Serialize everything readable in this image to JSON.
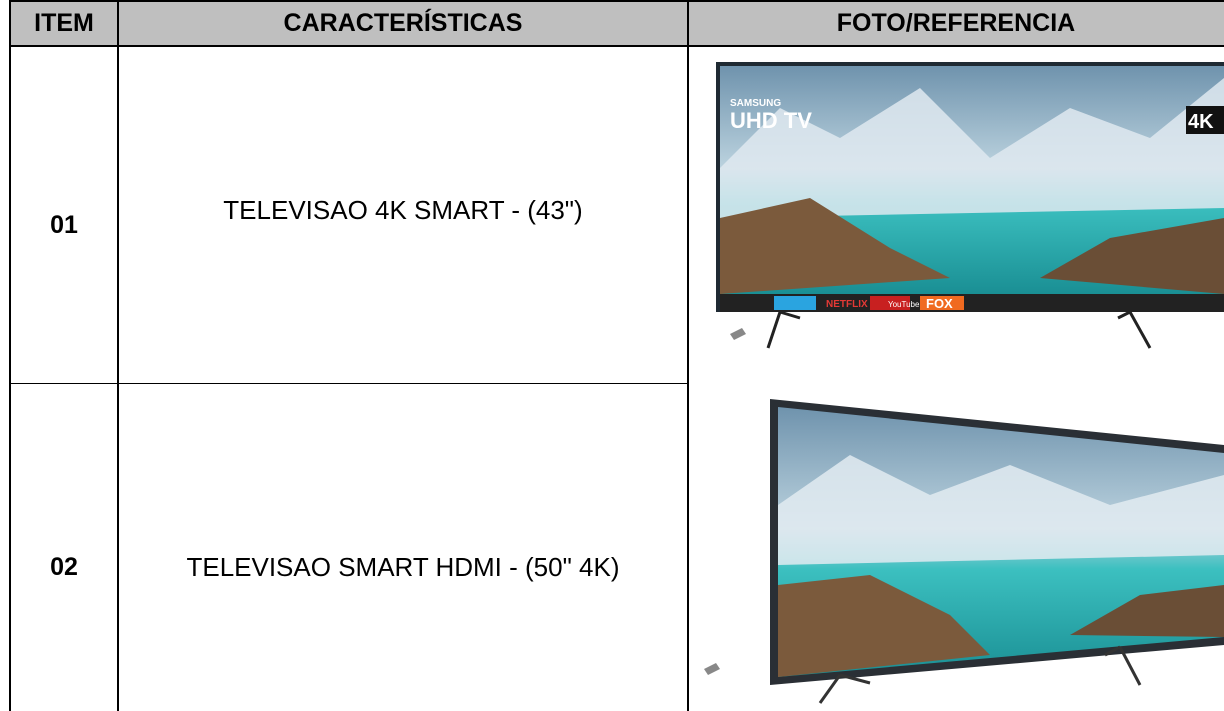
{
  "table": {
    "headers": [
      "ITEM",
      "CARACTERÍSTICAS",
      "FOTO/REFERENCIA"
    ],
    "rows": [
      {
        "item": "01",
        "description": "TELEVISAO 4K SMART - (43\")",
        "photo_texts": [
          "SAMSUNG",
          "UHD TV",
          "4K",
          "NETFLIX",
          "YouTube",
          "FOX"
        ]
      },
      {
        "item": "02",
        "description": "TELEVISAO SMART HDMI - (50\" 4K)"
      }
    ]
  }
}
